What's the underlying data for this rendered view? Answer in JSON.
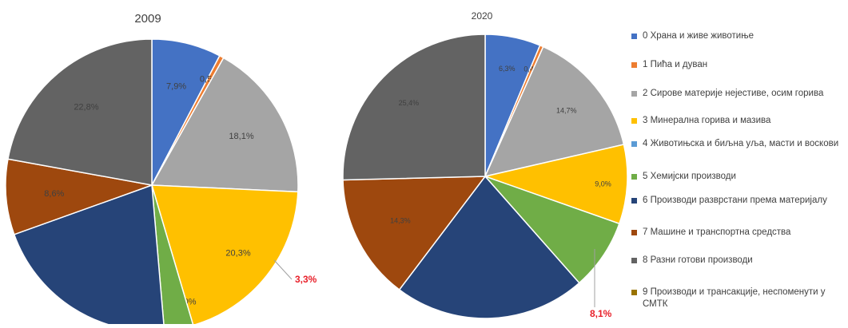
{
  "chart_data": [
    {
      "type": "pie",
      "title": "2009",
      "categories": [
        "0",
        "1",
        "2",
        "3",
        "4",
        "5",
        "6",
        "7",
        "8",
        "9"
      ],
      "values": [
        7.9,
        0.5,
        18.1,
        20.3,
        0.0,
        3.3,
        21.5,
        8.6,
        22.8,
        0.0
      ],
      "data_labels": [
        "7,9%",
        "0,5%",
        "18,1%",
        "20,3%",
        "0,0%",
        "3,3%",
        "",
        "8,6%",
        "22,8%",
        ""
      ]
    },
    {
      "type": "pie",
      "title": "2020",
      "categories": [
        "0",
        "1",
        "2",
        "3",
        "4",
        "5",
        "6",
        "7",
        "8",
        "9"
      ],
      "values": [
        6.3,
        0.4,
        14.7,
        9.0,
        0.0,
        8.1,
        21.8,
        14.3,
        25.4,
        0.0
      ],
      "data_labels": [
        "6,3%",
        "0,4%",
        "14,7%",
        "9,0%",
        "",
        "8,1%",
        "",
        "14,3%",
        "25,4%",
        ""
      ]
    }
  ],
  "legend": [
    {
      "label": "0 Храна и живе животиње",
      "color": "#4472c4"
    },
    {
      "label": "1 Пића и дуван",
      "color": "#ed7d31"
    },
    {
      "label": "2 Сирове материје нејестиве, осим горива",
      "color": "#a5a5a5"
    },
    {
      "label": "3 Минерална горива и мазива",
      "color": "#ffc000"
    },
    {
      "label": "4 Животињска и биљна уља, масти и воскови",
      "color": "#5b9bd5"
    },
    {
      "label": "5 Хемијски производи",
      "color": "#70ad47"
    },
    {
      "label": "6 Производи разврстани према материјалу",
      "color": "#264478"
    },
    {
      "label": "7 Машине и транспортна средства",
      "color": "#9e480e"
    },
    {
      "label": "8 Разни готови производи",
      "color": "#636363"
    },
    {
      "label": "9 Производи и трансакције, неспоменути у СМТК",
      "color": "#997300"
    }
  ],
  "colors": [
    "#4472c4",
    "#ed7d31",
    "#a5a5a5",
    "#ffc000",
    "#5b9bd5",
    "#70ad47",
    "#264478",
    "#9e480e",
    "#636363",
    "#997300"
  ],
  "highlight_color": "#e8202a"
}
